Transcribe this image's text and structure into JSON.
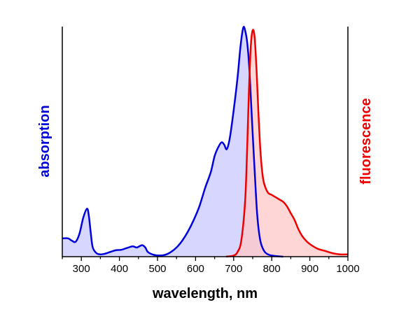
{
  "chart_data": {
    "type": "area",
    "title": "",
    "xlabel": "wavelength, nm",
    "ylabel_left": "absorption",
    "ylabel_right": "fluorescence",
    "xlim": [
      250,
      1000
    ],
    "ylim": [
      0,
      1
    ],
    "x_ticks": [
      300,
      400,
      500,
      600,
      700,
      800,
      900,
      1000
    ],
    "grid": false,
    "legend": "none",
    "series": [
      {
        "name": "absorption",
        "color": "#0000dd",
        "fill": "#c8c8ff",
        "x": [
          250,
          265,
          275,
          285,
          295,
          305,
          315,
          320,
          325,
          330,
          340,
          350,
          360,
          375,
          390,
          405,
          420,
          435,
          445,
          452,
          460,
          468,
          475,
          490,
          505,
          520,
          535,
          550,
          565,
          580,
          595,
          610,
          625,
          640,
          650,
          660,
          668,
          675,
          682,
          690,
          700,
          710,
          718,
          725,
          730,
          736,
          742,
          748,
          755,
          762,
          770,
          780,
          790,
          800,
          815,
          830
        ],
        "y": [
          0.08,
          0.08,
          0.07,
          0.065,
          0.1,
          0.17,
          0.21,
          0.175,
          0.1,
          0.04,
          0.015,
          0.01,
          0.012,
          0.02,
          0.028,
          0.03,
          0.038,
          0.045,
          0.04,
          0.045,
          0.05,
          0.04,
          0.02,
          0.008,
          0.005,
          0.008,
          0.02,
          0.04,
          0.07,
          0.11,
          0.16,
          0.22,
          0.3,
          0.37,
          0.44,
          0.48,
          0.5,
          0.49,
          0.47,
          0.52,
          0.64,
          0.78,
          0.92,
          1.0,
          0.99,
          0.93,
          0.8,
          0.6,
          0.38,
          0.18,
          0.07,
          0.025,
          0.01,
          0.005,
          0.002,
          0.0
        ]
      },
      {
        "name": "fluorescence",
        "color": "#ee0000",
        "fill": "#ffc8c8",
        "x": [
          680,
          700,
          710,
          720,
          730,
          735,
          740,
          745,
          750,
          755,
          760,
          765,
          770,
          775,
          780,
          790,
          800,
          810,
          820,
          830,
          840,
          850,
          860,
          870,
          880,
          890,
          900,
          920,
          940,
          960,
          980,
          1000
        ],
        "y": [
          0.0,
          0.005,
          0.02,
          0.07,
          0.24,
          0.45,
          0.72,
          0.92,
          0.99,
          0.96,
          0.82,
          0.63,
          0.47,
          0.37,
          0.32,
          0.28,
          0.27,
          0.26,
          0.25,
          0.24,
          0.22,
          0.19,
          0.16,
          0.12,
          0.09,
          0.07,
          0.055,
          0.035,
          0.025,
          0.015,
          0.01,
          0.01
        ]
      }
    ]
  }
}
